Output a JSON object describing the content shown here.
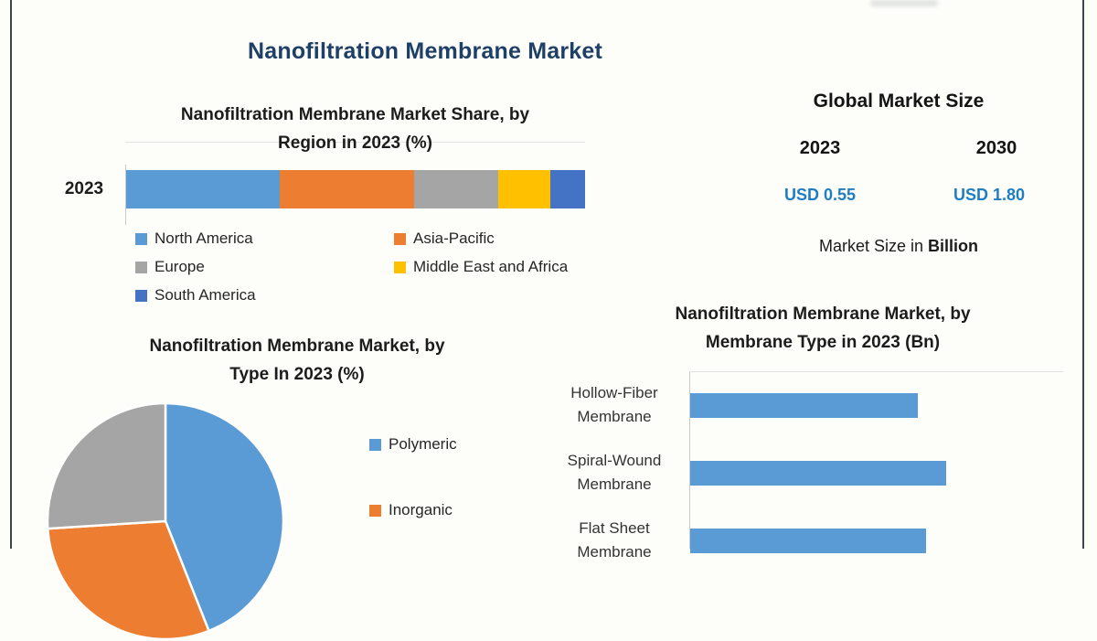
{
  "page": {
    "title": "Nanofiltration Membrane Market"
  },
  "region_chart": {
    "title_line1": "Nanofiltration Membrane Market Share, by",
    "title_line2": "Region in 2023 (%)",
    "category_label": "2023"
  },
  "market_size": {
    "heading": "Global Market Size",
    "year_left": "2023",
    "year_right": "2030",
    "value_left": "USD 0.55",
    "value_right": "USD 1.80",
    "value_color": "#1f7ec2",
    "caption_prefix": "Market Size in ",
    "caption_bold": "Billion"
  },
  "type_pie": {
    "title_line1": "Nanofiltration Membrane Market, by",
    "title_line2": "Type In 2023 (%)"
  },
  "membrane_chart": {
    "title_line1": "Nanofiltration Membrane Market, by",
    "title_line2": "Membrane Type in 2023 (Bn)"
  },
  "chart_data": [
    {
      "id": "region_share",
      "type": "bar",
      "variant": "horizontal-stacked",
      "title": "Nanofiltration Membrane Market Share, by Region in 2023 (%)",
      "categories": [
        "2023"
      ],
      "series": [
        {
          "name": "North America",
          "values": [
            33.4
          ],
          "color": "#5b9bd5"
        },
        {
          "name": "Asia-Pacific",
          "values": [
            29.4
          ],
          "color": "#ed7d31"
        },
        {
          "name": "Europe",
          "values": [
            18.3
          ],
          "color": "#a5a5a5"
        },
        {
          "name": "Middle East and Africa",
          "values": [
            11.3
          ],
          "color": "#ffc000"
        },
        {
          "name": "South America",
          "values": [
            7.6
          ],
          "color": "#4472c4"
        }
      ],
      "unit": "%",
      "xlim": [
        0,
        100
      ],
      "grid": false,
      "legend_position": "bottom",
      "note": "segment values estimated from bar segment widths"
    },
    {
      "id": "type_share",
      "type": "pie",
      "title": "Nanofiltration Membrane Market, by Type In 2023 (%)",
      "slices": [
        {
          "label": "Polymeric",
          "value": 44,
          "color": "#5b9bd5"
        },
        {
          "label": "Inorganic",
          "value": 30,
          "color": "#ed7d31"
        },
        {
          "label": "",
          "value": 26,
          "color": "#a5a5a5"
        }
      ],
      "start_angle_deg": 0,
      "direction": "clockwise",
      "legend_position": "right",
      "unit": "%",
      "note": "pie and third slice legend label cut off by bottom edge of image; values estimated from visible slice angles"
    },
    {
      "id": "membrane_type",
      "type": "bar",
      "variant": "horizontal",
      "title": "Nanofiltration Membrane Market, by Membrane Type in 2023 (Bn)",
      "categories": [
        "Hollow-Fiber Membrane",
        "Spiral-Wound Membrane",
        "Flat Sheet Membrane"
      ],
      "values_relative_to_max": [
        0.89,
        1.0,
        0.92
      ],
      "bar_color": "#5b9bd5",
      "unit": "Bn",
      "grid": false,
      "note": "value axis not visible (cut off); bar lengths given relative to longest bar; third bar partially cut by bottom edge"
    }
  ]
}
